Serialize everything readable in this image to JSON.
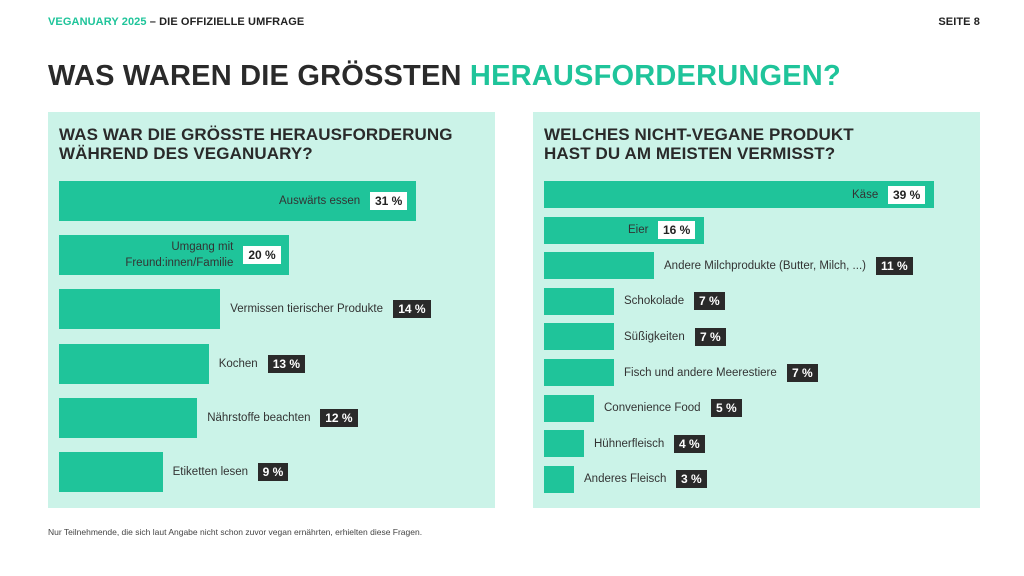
{
  "header": {
    "brand": "VEGANUARY 2025",
    "separator": " – ",
    "subtitle": "DIE OFFIZIELLE UMFRAGE",
    "page": "SEITE 8"
  },
  "headline": {
    "main": "WAS WAREN DIE GRÖSSTEN ",
    "accent": "HERAUSFORDERUNGEN?"
  },
  "colors": {
    "accent": "#1fc49a",
    "panel": "#cbf3e8",
    "dark": "#2a2a2a"
  },
  "chart_data": [
    {
      "type": "bar",
      "orientation": "horizontal",
      "title_lines": [
        "WAS WAR DIE GRÖSSTE HERAUSFORDERUNG",
        "WÄHREND DES VEGANUARY?"
      ],
      "categories": [
        "Auswärts essen",
        "Umgang mit Freund:innen/Familie",
        "Vermissen tierischer Produkte",
        "Kochen",
        "Nährstoffe beachten",
        "Etiketten lesen"
      ],
      "category_lines": [
        [
          "Auswärts essen"
        ],
        [
          "Umgang mit",
          "Freund:innen/Familie"
        ],
        [
          "Vermissen tierischer Produkte"
        ],
        [
          "Kochen"
        ],
        [
          "Nährstoffe beachten"
        ],
        [
          "Etiketten lesen"
        ]
      ],
      "values": [
        31,
        20,
        14,
        13,
        12,
        9
      ],
      "value_labels": [
        "31 %",
        "20 %",
        "14 %",
        "13 %",
        "12 %",
        "9 %"
      ],
      "unit": "%"
    },
    {
      "type": "bar",
      "orientation": "horizontal",
      "title_lines": [
        "WELCHES NICHT-VEGANE PRODUKT",
        "HAST DU AM MEISTEN VERMISST?"
      ],
      "categories": [
        "Käse",
        "Eier",
        "Andere Milchprodukte (Butter, Milch, ...)",
        "Schokolade",
        "Süßigkeiten",
        "Fisch und andere Meerestiere",
        "Convenience Food",
        "Hühnerfleisch",
        "Anderes Fleisch"
      ],
      "category_lines": [
        [
          "Käse"
        ],
        [
          "Eier"
        ],
        [
          "Andere Milchprodukte (Butter, Milch, ...)"
        ],
        [
          "Schokolade"
        ],
        [
          "Süßigkeiten"
        ],
        [
          "Fisch und andere Meerestiere"
        ],
        [
          "Convenience Food"
        ],
        [
          "Hühnerfleisch"
        ],
        [
          "Anderes Fleisch"
        ]
      ],
      "values": [
        39,
        16,
        11,
        7,
        7,
        7,
        5,
        4,
        3
      ],
      "value_labels": [
        "39 %",
        "16 %",
        "11 %",
        "7 %",
        "7 %",
        "7 %",
        "5 %",
        "4 %",
        "3 %"
      ],
      "unit": "%"
    }
  ],
  "footnote": "Nur Teilnehmende, die sich laut Angabe nicht schon zuvor vegan ernährten, erhielten diese Fragen."
}
